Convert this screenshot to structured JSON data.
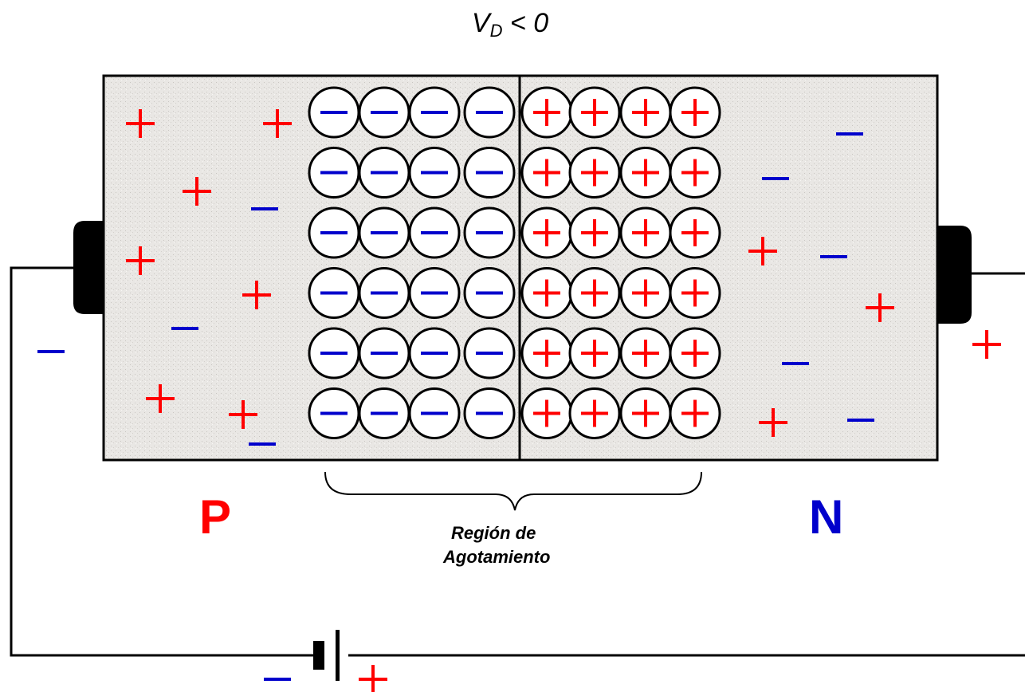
{
  "title": {
    "main": "V",
    "subscript": "D",
    "rest": " < 0"
  },
  "labels": {
    "p_side": "P",
    "n_side": "N",
    "region_line1": "Región de",
    "region_line2": "Agotamiento"
  },
  "depletion": {
    "rows": 6,
    "negative_columns": 4,
    "positive_columns": 4
  },
  "battery": {
    "negative_terminal": "−",
    "positive_terminal": "+"
  },
  "external_charges": {
    "left": "−",
    "right": "+"
  },
  "colors": {
    "positive": "#ff0000",
    "negative": "#0000cc",
    "semiconductor": "#e6e4e1",
    "wire": "#000000"
  }
}
